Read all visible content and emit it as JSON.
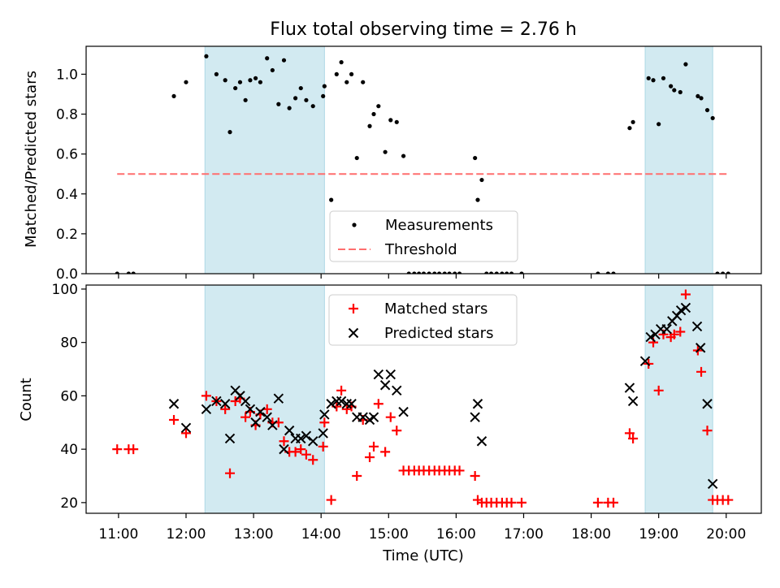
{
  "title": "Flux total observing time = 2.76 h",
  "xlabel": "Time (UTC)",
  "x_ticks": [
    "11:00",
    "12:00",
    "13:00",
    "14:00",
    "15:00",
    "16:00",
    "17:00",
    "18:00",
    "19:00",
    "20:00"
  ],
  "x_tick_hours": [
    11,
    12,
    13,
    14,
    15,
    16,
    17,
    18,
    19,
    20
  ],
  "shaded_color": "#add8e6",
  "chart_data": [
    {
      "type": "scatter",
      "title": "Flux total observing time = 2.76 h",
      "xlabel": "",
      "ylabel": "Matched/Predicted stars",
      "xlim": [
        10.52,
        20.52
      ],
      "ylim": [
        0,
        1.14
      ],
      "y_ticks": [
        "0.0",
        "0.2",
        "0.4",
        "0.6",
        "0.8",
        "1.0"
      ],
      "y_tick_values": [
        0,
        0.2,
        0.4,
        0.6,
        0.8,
        1.0
      ],
      "shaded_regions": [
        [
          12.28,
          14.05
        ],
        [
          18.8,
          19.8
        ]
      ],
      "legend_position": "lower-center",
      "series": [
        {
          "name": "Measurements",
          "marker": "dot",
          "color": "#000000",
          "x": [
            10.98,
            11.15,
            11.22,
            11.82,
            12.0,
            12.3,
            12.45,
            12.58,
            12.65,
            12.73,
            12.8,
            12.88,
            12.95,
            13.03,
            13.1,
            13.2,
            13.28,
            13.37,
            13.45,
            13.53,
            13.62,
            13.7,
            13.78,
            13.88,
            14.03,
            14.05,
            14.15,
            14.23,
            14.3,
            14.38,
            14.45,
            14.53,
            14.62,
            14.72,
            14.78,
            14.85,
            14.95,
            15.03,
            15.12,
            15.22,
            15.3,
            15.38,
            15.45,
            15.52,
            15.6,
            15.68,
            15.75,
            15.83,
            15.9,
            15.98,
            16.05,
            16.28,
            16.32,
            16.38,
            16.45,
            16.52,
            16.6,
            16.68,
            16.75,
            16.82,
            16.97,
            18.1,
            18.25,
            18.33,
            18.57,
            18.62,
            18.85,
            18.92,
            19.0,
            19.07,
            19.18,
            19.23,
            19.32,
            19.4,
            19.58,
            19.63,
            19.72,
            19.8,
            19.87,
            19.95,
            20.03
          ],
          "y": [
            0,
            0,
            0,
            0.89,
            0.96,
            1.09,
            1.0,
            0.97,
            0.71,
            0.93,
            0.96,
            0.87,
            0.97,
            0.98,
            0.96,
            1.08,
            1.02,
            0.85,
            1.07,
            0.83,
            0.88,
            0.93,
            0.87,
            0.84,
            0.89,
            0.94,
            0.37,
            1.0,
            1.06,
            0.96,
            1.0,
            0.58,
            0.96,
            0.74,
            0.8,
            0.84,
            0.61,
            0.77,
            0.76,
            0.59,
            0,
            0,
            0,
            0,
            0,
            0,
            0,
            0,
            0,
            0,
            0,
            0.58,
            0.37,
            0.47,
            0,
            0,
            0,
            0,
            0,
            0,
            0,
            0,
            0,
            0,
            0.73,
            0.76,
            0.98,
            0.97,
            0.75,
            0.98,
            0.94,
            0.92,
            0.91,
            1.05,
            0.89,
            0.88,
            0.82,
            0.78,
            0,
            0,
            0
          ]
        },
        {
          "name": "Threshold",
          "type": "line",
          "style": "dashed",
          "color": "#ff6e6e",
          "x": [
            10.98,
            20.05
          ],
          "y": [
            0.5,
            0.5
          ]
        }
      ]
    },
    {
      "type": "scatter",
      "xlabel": "Time (UTC)",
      "ylabel": "Count",
      "xlim": [
        10.52,
        20.52
      ],
      "ylim": [
        16,
        101.5
      ],
      "y_ticks": [
        "20",
        "40",
        "60",
        "80",
        "100"
      ],
      "y_tick_values": [
        20,
        40,
        60,
        80,
        100
      ],
      "shaded_regions": [
        [
          12.28,
          14.05
        ],
        [
          18.8,
          19.8
        ]
      ],
      "legend_position": "upper-center",
      "series": [
        {
          "name": "Matched stars",
          "marker": "plus",
          "color": "#ff0000",
          "x": [
            10.98,
            11.15,
            11.22,
            11.82,
            12.0,
            12.3,
            12.45,
            12.58,
            12.65,
            12.73,
            12.8,
            12.88,
            12.95,
            13.03,
            13.1,
            13.2,
            13.28,
            13.37,
            13.45,
            13.53,
            13.62,
            13.7,
            13.78,
            13.88,
            14.03,
            14.05,
            14.15,
            14.23,
            14.3,
            14.38,
            14.45,
            14.53,
            14.62,
            14.72,
            14.78,
            14.85,
            14.95,
            15.03,
            15.12,
            15.22,
            15.3,
            15.38,
            15.45,
            15.52,
            15.6,
            15.68,
            15.75,
            15.83,
            15.9,
            15.98,
            16.05,
            16.28,
            16.32,
            16.38,
            16.45,
            16.52,
            16.6,
            16.68,
            16.75,
            16.82,
            16.97,
            18.1,
            18.25,
            18.33,
            18.57,
            18.62,
            18.85,
            18.92,
            19.0,
            19.07,
            19.18,
            19.23,
            19.32,
            19.4,
            19.58,
            19.63,
            19.72,
            19.8,
            19.87,
            19.95,
            20.03
          ],
          "y": [
            40,
            40,
            40,
            51,
            46,
            60,
            58,
            55,
            31,
            58,
            59,
            52,
            54,
            49,
            53,
            55,
            50,
            50,
            43,
            39,
            39,
            40,
            38,
            36,
            41,
            50,
            21,
            56,
            62,
            55,
            56,
            30,
            51,
            37,
            41,
            57,
            39,
            52,
            47,
            32,
            32,
            32,
            32,
            32,
            32,
            32,
            32,
            32,
            32,
            32,
            32,
            30,
            21,
            20,
            20,
            20,
            20,
            20,
            20,
            20,
            20,
            20,
            20,
            20,
            46,
            44,
            72,
            80,
            62,
            83,
            82,
            83,
            84,
            98,
            77,
            69,
            47,
            21,
            21,
            21,
            21
          ]
        },
        {
          "name": "Predicted stars",
          "marker": "x",
          "color": "#000000",
          "x": [
            11.82,
            12.0,
            12.3,
            12.45,
            12.58,
            12.65,
            12.73,
            12.8,
            12.88,
            12.95,
            13.03,
            13.1,
            13.2,
            13.28,
            13.37,
            13.45,
            13.53,
            13.62,
            13.7,
            13.78,
            13.88,
            14.03,
            14.05,
            14.15,
            14.23,
            14.3,
            14.38,
            14.45,
            14.53,
            14.62,
            14.72,
            14.78,
            14.85,
            14.95,
            15.03,
            15.12,
            15.22,
            16.28,
            16.32,
            16.38,
            18.57,
            18.62,
            18.8,
            18.88,
            18.95,
            19.03,
            19.12,
            19.2,
            19.27,
            19.33,
            19.4,
            19.57,
            19.62,
            19.72,
            19.8
          ],
          "y": [
            57,
            48,
            55,
            58,
            57,
            44,
            62,
            60,
            58,
            55,
            50,
            54,
            52,
            49,
            59,
            40,
            47,
            44,
            44,
            45,
            43,
            46,
            53,
            57,
            58,
            58,
            57,
            57,
            52,
            52,
            51,
            52,
            68,
            64,
            68,
            62,
            54,
            52,
            57,
            43,
            63,
            58,
            73,
            82,
            83,
            85,
            85,
            88,
            90,
            92,
            93,
            86,
            78,
            57,
            27
          ]
        }
      ]
    }
  ]
}
